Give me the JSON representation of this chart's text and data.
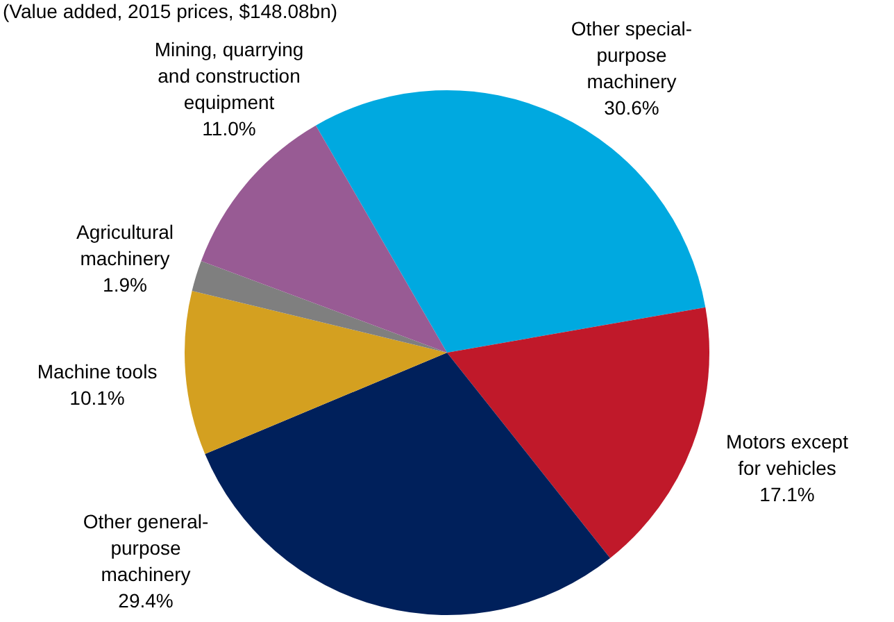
{
  "chart_data": {
    "type": "pie",
    "subtitle": "(Value added, 2015 prices, $148.08bn)",
    "categories": [
      "Other special-purpose machinery",
      "Motors except for vehicles",
      "Other general-purpose machinery",
      "Machine tools",
      "Agricultural machinery",
      "Mining, quarrying and construction equipment"
    ],
    "values": [
      30.6,
      17.1,
      29.4,
      10.1,
      1.9,
      11.0
    ],
    "value_labels": [
      "30.6%",
      "17.1%",
      "29.4%",
      "10.1%",
      "1.9%",
      "11.0%"
    ],
    "colors": [
      "#00a9e0",
      "#c0192a",
      "#00205b",
      "#d4a020",
      "#7f7f7f",
      "#985b94"
    ],
    "legend": false
  }
}
